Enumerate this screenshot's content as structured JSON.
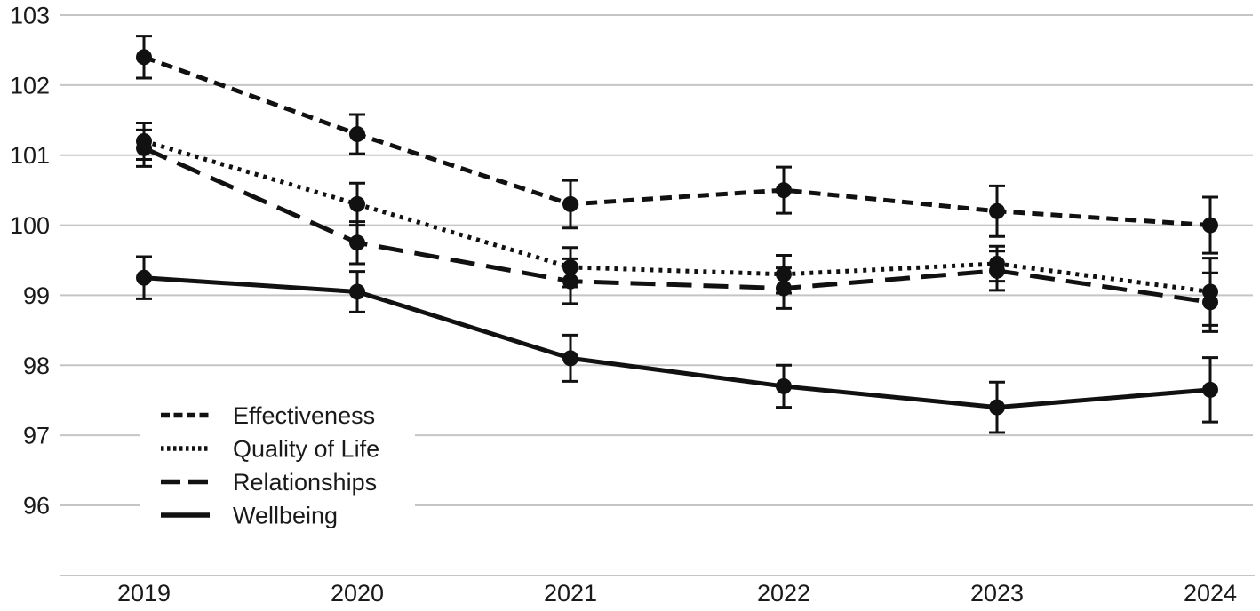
{
  "chart_data": {
    "type": "line",
    "title": "",
    "xlabel": "",
    "ylabel": "",
    "categories": [
      "2019",
      "2020",
      "2021",
      "2022",
      "2023",
      "2024"
    ],
    "yticks": [
      96,
      97,
      98,
      99,
      100,
      101,
      102,
      103
    ],
    "ylim": [
      95,
      103
    ],
    "grid": true,
    "error_bars": true,
    "legend_position": "lower-left",
    "series": [
      {
        "name": "Effectiveness",
        "line_style": "dashed",
        "values": [
          102.4,
          101.3,
          100.3,
          100.5,
          100.2,
          100.0
        ],
        "errors": [
          0.3,
          0.28,
          0.34,
          0.33,
          0.36,
          0.4
        ]
      },
      {
        "name": "Quality of Life",
        "line_style": "dotted",
        "values": [
          101.2,
          100.3,
          99.4,
          99.3,
          99.45,
          99.05
        ],
        "errors": [
          0.26,
          0.3,
          0.28,
          0.27,
          0.25,
          0.48
        ]
      },
      {
        "name": "Relationships",
        "line_style": "long-dash",
        "values": [
          101.1,
          99.75,
          99.2,
          99.1,
          99.35,
          98.9
        ],
        "errors": [
          0.26,
          0.3,
          0.32,
          0.29,
          0.28,
          0.42
        ]
      },
      {
        "name": "Wellbeing",
        "line_style": "solid",
        "values": [
          99.25,
          99.05,
          98.1,
          97.7,
          97.4,
          97.65
        ],
        "errors": [
          0.3,
          0.29,
          0.33,
          0.3,
          0.36,
          0.46
        ]
      }
    ],
    "colors": {
      "line": "#111111",
      "grid": "#c5c5c5",
      "axis": "#c5c5c5",
      "text": "#1a1a1a",
      "background": "#ffffff"
    }
  }
}
